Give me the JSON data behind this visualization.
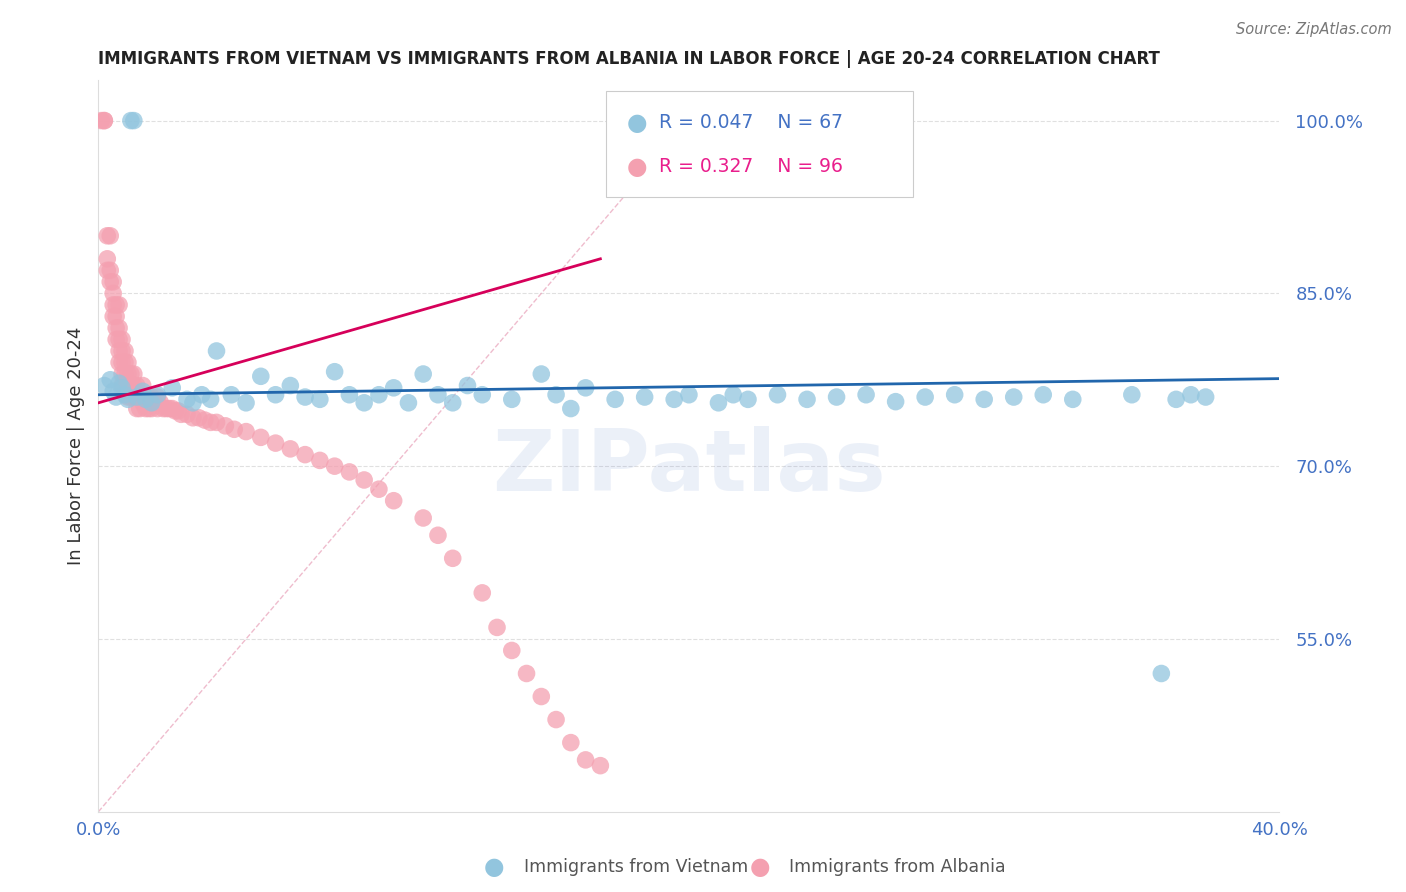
{
  "title": "IMMIGRANTS FROM VIETNAM VS IMMIGRANTS FROM ALBANIA IN LABOR FORCE | AGE 20-24 CORRELATION CHART",
  "source": "Source: ZipAtlas.com",
  "ylabel": "In Labor Force | Age 20-24",
  "xlim": [
    0.0,
    0.4
  ],
  "ylim": [
    0.4,
    1.035
  ],
  "ytick_positions_right": [
    0.55,
    0.7,
    0.85,
    1.0
  ],
  "ytick_labels_right": [
    "55.0%",
    "70.0%",
    "85.0%",
    "100.0%"
  ],
  "legend_R_vietnam": "0.047",
  "legend_N_vietnam": "67",
  "legend_R_albania": "0.327",
  "legend_N_albania": "96",
  "vietnam_color": "#92C5DE",
  "albania_color": "#F4A0B0",
  "trend_vietnam_color": "#2166AC",
  "trend_albania_color": "#D6005A",
  "diagonal_color": "#BBBBBB",
  "background_color": "#FFFFFF",
  "grid_color": "#CCCCCC",
  "watermark": "ZIPatlas",
  "vietnam_x": [
    0.002,
    0.004,
    0.005,
    0.006,
    0.007,
    0.008,
    0.009,
    0.01,
    0.011,
    0.012,
    0.013,
    0.015,
    0.016,
    0.018,
    0.02,
    0.025,
    0.03,
    0.032,
    0.035,
    0.038,
    0.04,
    0.045,
    0.05,
    0.055,
    0.06,
    0.065,
    0.07,
    0.075,
    0.08,
    0.085,
    0.09,
    0.095,
    0.1,
    0.105,
    0.11,
    0.115,
    0.12,
    0.125,
    0.13,
    0.14,
    0.15,
    0.155,
    0.16,
    0.165,
    0.175,
    0.185,
    0.195,
    0.2,
    0.21,
    0.215,
    0.22,
    0.23,
    0.24,
    0.25,
    0.26,
    0.27,
    0.28,
    0.29,
    0.3,
    0.31,
    0.32,
    0.33,
    0.35,
    0.36,
    0.365,
    0.37,
    0.375
  ],
  "vietnam_y": [
    0.77,
    0.775,
    0.765,
    0.76,
    0.772,
    0.768,
    0.762,
    0.758,
    1.0,
    1.0,
    0.76,
    0.765,
    0.758,
    0.755,
    0.762,
    0.768,
    0.758,
    0.755,
    0.762,
    0.758,
    0.8,
    0.762,
    0.755,
    0.778,
    0.762,
    0.77,
    0.76,
    0.758,
    0.782,
    0.762,
    0.755,
    0.762,
    0.768,
    0.755,
    0.78,
    0.762,
    0.755,
    0.77,
    0.762,
    0.758,
    0.78,
    0.762,
    0.75,
    0.768,
    0.758,
    0.76,
    0.758,
    0.762,
    0.755,
    0.762,
    0.758,
    0.762,
    0.758,
    0.76,
    0.762,
    0.756,
    0.76,
    0.762,
    0.758,
    0.76,
    0.762,
    0.758,
    0.762,
    0.52,
    0.758,
    0.762,
    0.76
  ],
  "albania_x": [
    0.001,
    0.002,
    0.002,
    0.003,
    0.003,
    0.003,
    0.004,
    0.004,
    0.004,
    0.005,
    0.005,
    0.005,
    0.005,
    0.006,
    0.006,
    0.006,
    0.006,
    0.007,
    0.007,
    0.007,
    0.007,
    0.007,
    0.008,
    0.008,
    0.008,
    0.008,
    0.008,
    0.009,
    0.009,
    0.009,
    0.009,
    0.01,
    0.01,
    0.01,
    0.01,
    0.011,
    0.011,
    0.011,
    0.012,
    0.012,
    0.012,
    0.013,
    0.013,
    0.013,
    0.014,
    0.014,
    0.015,
    0.015,
    0.016,
    0.016,
    0.017,
    0.017,
    0.018,
    0.018,
    0.019,
    0.02,
    0.02,
    0.021,
    0.022,
    0.023,
    0.024,
    0.025,
    0.026,
    0.027,
    0.028,
    0.03,
    0.032,
    0.034,
    0.036,
    0.038,
    0.04,
    0.043,
    0.046,
    0.05,
    0.055,
    0.06,
    0.065,
    0.07,
    0.075,
    0.08,
    0.085,
    0.09,
    0.095,
    0.1,
    0.11,
    0.115,
    0.12,
    0.13,
    0.135,
    0.14,
    0.145,
    0.15,
    0.155,
    0.16,
    0.165,
    0.17
  ],
  "albania_y": [
    1.0,
    1.0,
    1.0,
    0.9,
    0.88,
    0.87,
    0.9,
    0.87,
    0.86,
    0.86,
    0.85,
    0.84,
    0.83,
    0.84,
    0.83,
    0.82,
    0.81,
    0.84,
    0.82,
    0.81,
    0.8,
    0.79,
    0.81,
    0.8,
    0.79,
    0.78,
    0.77,
    0.8,
    0.79,
    0.78,
    0.77,
    0.79,
    0.78,
    0.77,
    0.76,
    0.78,
    0.77,
    0.76,
    0.78,
    0.77,
    0.76,
    0.77,
    0.76,
    0.75,
    0.76,
    0.75,
    0.77,
    0.755,
    0.76,
    0.75,
    0.76,
    0.75,
    0.76,
    0.75,
    0.755,
    0.76,
    0.75,
    0.755,
    0.75,
    0.75,
    0.75,
    0.75,
    0.748,
    0.748,
    0.745,
    0.745,
    0.742,
    0.742,
    0.74,
    0.738,
    0.738,
    0.735,
    0.732,
    0.73,
    0.725,
    0.72,
    0.715,
    0.71,
    0.705,
    0.7,
    0.695,
    0.688,
    0.68,
    0.67,
    0.655,
    0.64,
    0.62,
    0.59,
    0.56,
    0.54,
    0.52,
    0.5,
    0.48,
    0.46,
    0.445,
    0.44
  ]
}
